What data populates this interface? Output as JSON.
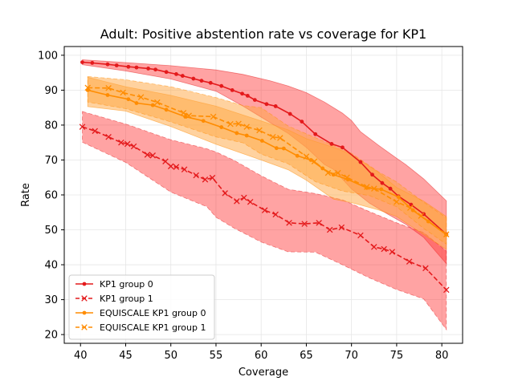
{
  "chart_data": {
    "type": "line",
    "title": "Adult: Positive abstention rate vs coverage for KP1",
    "xlabel": "Coverage",
    "ylabel": "Rate",
    "xlim": [
      38.2,
      82.3
    ],
    "ylim": [
      17.5,
      102.5
    ],
    "xticks": [
      40,
      45,
      50,
      55,
      60,
      65,
      70,
      75,
      80
    ],
    "yticks": [
      20,
      30,
      40,
      50,
      60,
      70,
      80,
      90,
      100
    ],
    "grid": true,
    "legend_position": "lower-left",
    "series": [
      {
        "name": "KP1 group 0",
        "color": "#e41a1c",
        "linestyle": "solid",
        "marker": "dot",
        "points": [
          [
            40.2,
            98.0
          ],
          [
            41.3,
            97.8
          ],
          [
            43.0,
            97.4
          ],
          [
            44.0,
            97.1
          ],
          [
            45.3,
            96.7
          ],
          [
            46.2,
            96.5
          ],
          [
            47.5,
            96.2
          ],
          [
            48.3,
            95.9
          ],
          [
            49.5,
            95.2
          ],
          [
            50.6,
            94.6
          ],
          [
            51.3,
            94.1
          ],
          [
            52.5,
            93.3
          ],
          [
            53.4,
            92.7
          ],
          [
            54.4,
            92.1
          ],
          [
            55.6,
            91.2
          ],
          [
            56.8,
            90.0
          ],
          [
            57.9,
            89.0
          ],
          [
            58.5,
            88.4
          ],
          [
            59.3,
            87.2
          ],
          [
            60.6,
            86.0
          ],
          [
            61.6,
            85.4
          ],
          [
            63.2,
            83.2
          ],
          [
            64.5,
            81.0
          ],
          [
            66.0,
            77.4
          ],
          [
            67.8,
            74.6
          ],
          [
            69.0,
            73.6
          ],
          [
            71.0,
            69.4
          ],
          [
            72.3,
            65.8
          ],
          [
            73.4,
            63.4
          ],
          [
            74.3,
            61.8
          ],
          [
            75.2,
            59.6
          ],
          [
            76.6,
            57.2
          ],
          [
            78.0,
            54.5
          ],
          [
            80.5,
            48.7
          ]
        ],
        "band_upper": [
          [
            40.2,
            98.7
          ],
          [
            45.0,
            97.9
          ],
          [
            50.0,
            97.0
          ],
          [
            55.0,
            95.8
          ],
          [
            58.0,
            94.5
          ],
          [
            61.0,
            92.7
          ],
          [
            63.0,
            91.2
          ],
          [
            65.0,
            89.3
          ],
          [
            67.0,
            86.6
          ],
          [
            69.0,
            83.4
          ],
          [
            70.0,
            81.3
          ],
          [
            71.0,
            78.1
          ],
          [
            73.0,
            74.2
          ],
          [
            75.0,
            70.5
          ],
          [
            76.0,
            68.7
          ],
          [
            78.0,
            64.6
          ],
          [
            80.5,
            58.3
          ]
        ],
        "band_lower": [
          [
            40.2,
            97.3
          ],
          [
            45.0,
            95.5
          ],
          [
            50.0,
            93.2
          ],
          [
            55.0,
            89.7
          ],
          [
            58.0,
            85.4
          ],
          [
            61.0,
            80.7
          ],
          [
            63.0,
            77.6
          ],
          [
            65.0,
            73.6
          ],
          [
            67.0,
            68.7
          ],
          [
            68.0,
            67.3
          ],
          [
            70.0,
            61.7
          ],
          [
            72.0,
            57.6
          ],
          [
            74.0,
            54.5
          ],
          [
            76.0,
            51.6
          ],
          [
            78.0,
            47.8
          ],
          [
            80.5,
            40.3
          ]
        ]
      },
      {
        "name": "KP1 group 1",
        "color": "#e41a1c",
        "linestyle": "dashed",
        "marker": "x",
        "points": [
          [
            40.2,
            79.5
          ],
          [
            41.6,
            78.3
          ],
          [
            43.1,
            76.6
          ],
          [
            44.5,
            75.0
          ],
          [
            45.2,
            74.6
          ],
          [
            45.9,
            73.9
          ],
          [
            47.4,
            71.5
          ],
          [
            48.0,
            71.3
          ],
          [
            49.4,
            69.6
          ],
          [
            50.0,
            68.2
          ],
          [
            50.6,
            68.0
          ],
          [
            51.5,
            67.3
          ],
          [
            52.8,
            65.6
          ],
          [
            53.8,
            64.4
          ],
          [
            54.6,
            64.9
          ],
          [
            56.0,
            60.5
          ],
          [
            57.3,
            58.2
          ],
          [
            58.1,
            59.2
          ],
          [
            58.8,
            58.0
          ],
          [
            60.4,
            55.6
          ],
          [
            61.6,
            54.4
          ],
          [
            63.1,
            52.0
          ],
          [
            64.8,
            51.7
          ],
          [
            66.4,
            52.0
          ],
          [
            67.6,
            50.0
          ],
          [
            68.9,
            50.7
          ],
          [
            71.0,
            48.4
          ],
          [
            72.5,
            45.1
          ],
          [
            73.6,
            44.5
          ],
          [
            74.5,
            43.7
          ],
          [
            76.4,
            40.9
          ],
          [
            78.2,
            39.0
          ],
          [
            80.5,
            32.8
          ]
        ],
        "band_upper": [
          [
            40.2,
            83.9
          ],
          [
            45.0,
            80.3
          ],
          [
            50.0,
            75.8
          ],
          [
            54.0,
            73.2
          ],
          [
            55.0,
            72.3
          ],
          [
            57.0,
            69.9
          ],
          [
            60.0,
            65.5
          ],
          [
            63.0,
            61.6
          ],
          [
            66.0,
            60.4
          ],
          [
            69.0,
            58.6
          ],
          [
            72.0,
            55.2
          ],
          [
            75.0,
            52.0
          ],
          [
            78.0,
            49.2
          ],
          [
            80.5,
            43.9
          ]
        ],
        "band_lower": [
          [
            40.2,
            75.1
          ],
          [
            45.0,
            69.3
          ],
          [
            50.0,
            60.8
          ],
          [
            54.0,
            56.6
          ],
          [
            55.0,
            53.6
          ],
          [
            57.0,
            50.5
          ],
          [
            60.0,
            46.5
          ],
          [
            63.0,
            43.7
          ],
          [
            66.0,
            43.6
          ],
          [
            69.0,
            40.0
          ],
          [
            72.0,
            36.2
          ],
          [
            75.0,
            32.9
          ],
          [
            78.0,
            30.2
          ],
          [
            80.5,
            21.4
          ]
        ]
      },
      {
        "name": "EQUISCALE KP1 group 0",
        "color": "#ff8c00",
        "linestyle": "solid",
        "marker": "dot",
        "points": [
          [
            40.8,
            90.0
          ],
          [
            43.0,
            88.6
          ],
          [
            45.3,
            87.4
          ],
          [
            46.2,
            86.3
          ],
          [
            48.0,
            85.7
          ],
          [
            49.5,
            84.4
          ],
          [
            51.6,
            82.4
          ],
          [
            53.6,
            81.2
          ],
          [
            55.6,
            79.4
          ],
          [
            57.3,
            77.7
          ],
          [
            58.4,
            77.0
          ],
          [
            60.1,
            75.5
          ],
          [
            61.7,
            73.4
          ],
          [
            62.5,
            73.3
          ],
          [
            64.0,
            71.2
          ],
          [
            65.5,
            70.0
          ],
          [
            66.8,
            67.6
          ],
          [
            68.0,
            65.8
          ],
          [
            69.6,
            64.4
          ],
          [
            71.7,
            62.0
          ],
          [
            73.3,
            61.6
          ],
          [
            75.2,
            59.4
          ],
          [
            76.8,
            55.6
          ],
          [
            78.5,
            52.4
          ],
          [
            80.5,
            48.6
          ]
        ],
        "band_upper": [
          [
            40.8,
            93.7
          ],
          [
            45.0,
            91.0
          ],
          [
            50.0,
            88.5
          ],
          [
            55.0,
            85.4
          ],
          [
            60.0,
            81.2
          ],
          [
            63.0,
            78.6
          ],
          [
            65.0,
            76.1
          ],
          [
            68.0,
            73.6
          ],
          [
            70.0,
            71.6
          ],
          [
            73.0,
            66.4
          ],
          [
            75.0,
            62.1
          ],
          [
            78.0,
            58.2
          ],
          [
            80.5,
            53.8
          ]
        ],
        "band_lower": [
          [
            40.8,
            85.3
          ],
          [
            45.0,
            84.0
          ],
          [
            50.0,
            79.6
          ],
          [
            55.0,
            74.5
          ],
          [
            60.0,
            70.0
          ],
          [
            63.0,
            67.2
          ],
          [
            65.0,
            64.2
          ],
          [
            68.0,
            58.8
          ],
          [
            70.0,
            57.8
          ],
          [
            73.0,
            55.7
          ],
          [
            75.0,
            53.8
          ],
          [
            78.0,
            48.6
          ],
          [
            80.5,
            44.4
          ]
        ]
      },
      {
        "name": "EQUISCALE KP1 group 1",
        "color": "#ff8c00",
        "linestyle": "dashed",
        "marker": "x",
        "points": [
          [
            40.8,
            90.7
          ],
          [
            43.1,
            90.6
          ],
          [
            44.7,
            89.3
          ],
          [
            46.7,
            88.0
          ],
          [
            48.5,
            86.5
          ],
          [
            51.4,
            83.5
          ],
          [
            52.0,
            82.7
          ],
          [
            54.7,
            82.4
          ],
          [
            56.6,
            80.3
          ],
          [
            57.5,
            80.4
          ],
          [
            58.4,
            79.5
          ],
          [
            59.8,
            78.5
          ],
          [
            61.3,
            76.6
          ],
          [
            62.1,
            76.3
          ],
          [
            65.0,
            71.0
          ],
          [
            65.9,
            69.6
          ],
          [
            67.4,
            66.3
          ],
          [
            68.5,
            66.3
          ],
          [
            69.5,
            65.0
          ],
          [
            71.7,
            62.3
          ],
          [
            72.5,
            61.8
          ],
          [
            75.0,
            58.0
          ],
          [
            76.5,
            56.3
          ],
          [
            77.7,
            54.0
          ],
          [
            80.5,
            48.7
          ]
        ],
        "band_upper": [
          [
            40.8,
            93.9
          ],
          [
            45.0,
            93.0
          ],
          [
            50.0,
            91.0
          ],
          [
            55.0,
            87.9
          ],
          [
            58.0,
            85.6
          ],
          [
            60.0,
            85.0
          ],
          [
            63.0,
            79.7
          ],
          [
            66.0,
            76.4
          ],
          [
            70.0,
            71.9
          ],
          [
            73.0,
            66.6
          ],
          [
            75.0,
            63.7
          ],
          [
            78.0,
            57.9
          ],
          [
            80.5,
            53.4
          ]
        ],
        "band_lower": [
          [
            40.8,
            86.6
          ],
          [
            45.0,
            84.7
          ],
          [
            50.0,
            80.9
          ],
          [
            55.0,
            76.6
          ],
          [
            58.0,
            74.9
          ],
          [
            60.0,
            71.7
          ],
          [
            63.0,
            68.9
          ],
          [
            66.0,
            63.8
          ],
          [
            69.0,
            61.1
          ],
          [
            72.0,
            59.8
          ],
          [
            75.0,
            56.6
          ],
          [
            78.0,
            50.4
          ],
          [
            80.5,
            45.9
          ]
        ]
      }
    ]
  }
}
